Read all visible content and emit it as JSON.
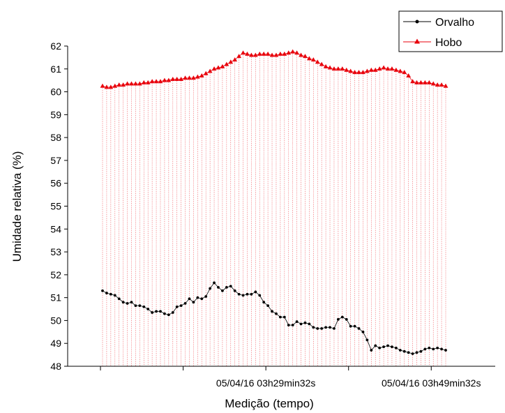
{
  "chart_data": {
    "type": "line",
    "title": "",
    "xlabel": "Medição (tempo)",
    "ylabel": "Umidade relativa (%)",
    "ylim": [
      48,
      62
    ],
    "yticks": [
      48,
      49,
      50,
      51,
      52,
      53,
      54,
      55,
      56,
      57,
      58,
      59,
      60,
      61,
      62
    ],
    "x_tick_labels": [
      "05/04/16 03h29min32s",
      "05/04/16 03h49min32s"
    ],
    "drop_lines": true,
    "legend_position": "top-right",
    "colors": {
      "Orvalho": "#000000",
      "Hobo": "#e8000b",
      "drop_lines": "#e8000b"
    },
    "series": [
      {
        "name": "Orvalho",
        "marker": "circle",
        "values": [
          51.3,
          51.2,
          51.15,
          51.1,
          50.95,
          50.8,
          50.75,
          50.8,
          50.65,
          50.65,
          50.6,
          50.5,
          50.35,
          50.4,
          50.4,
          50.3,
          50.25,
          50.35,
          50.6,
          50.65,
          50.75,
          50.95,
          50.8,
          51.0,
          50.95,
          51.05,
          51.4,
          51.65,
          51.45,
          51.3,
          51.45,
          51.5,
          51.3,
          51.15,
          51.1,
          51.15,
          51.15,
          51.25,
          51.1,
          50.8,
          50.65,
          50.4,
          50.3,
          50.15,
          50.15,
          49.8,
          49.8,
          49.95,
          49.85,
          49.9,
          49.85,
          49.7,
          49.65,
          49.65,
          49.7,
          49.7,
          49.65,
          50.05,
          50.15,
          50.05,
          49.75,
          49.75,
          49.65,
          49.5,
          49.15,
          48.7,
          48.9,
          48.8,
          48.85,
          48.9,
          48.85,
          48.8,
          48.7,
          48.65,
          48.6,
          48.55,
          48.6,
          48.65,
          48.75,
          48.8,
          48.75,
          48.8,
          48.75,
          48.7
        ]
      },
      {
        "name": "Hobo",
        "marker": "triangle",
        "values": [
          60.25,
          60.2,
          60.2,
          60.25,
          60.3,
          60.3,
          60.35,
          60.35,
          60.35,
          60.35,
          60.4,
          60.4,
          60.45,
          60.45,
          60.45,
          60.5,
          60.5,
          60.55,
          60.55,
          60.55,
          60.6,
          60.6,
          60.6,
          60.65,
          60.7,
          60.8,
          60.9,
          61.0,
          61.05,
          61.1,
          61.2,
          61.3,
          61.4,
          61.55,
          61.7,
          61.65,
          61.6,
          61.6,
          61.65,
          61.65,
          61.65,
          61.6,
          61.6,
          61.65,
          61.65,
          61.7,
          61.75,
          61.7,
          61.6,
          61.55,
          61.45,
          61.4,
          61.3,
          61.2,
          61.1,
          61.05,
          61.0,
          61.0,
          61.0,
          60.95,
          60.9,
          60.85,
          60.85,
          60.85,
          60.9,
          60.95,
          60.95,
          61.0,
          61.05,
          61.0,
          61.0,
          60.95,
          60.9,
          60.85,
          60.7,
          60.45,
          60.4,
          60.4,
          60.4,
          60.4,
          60.35,
          60.3,
          60.3,
          60.25
        ]
      }
    ]
  }
}
